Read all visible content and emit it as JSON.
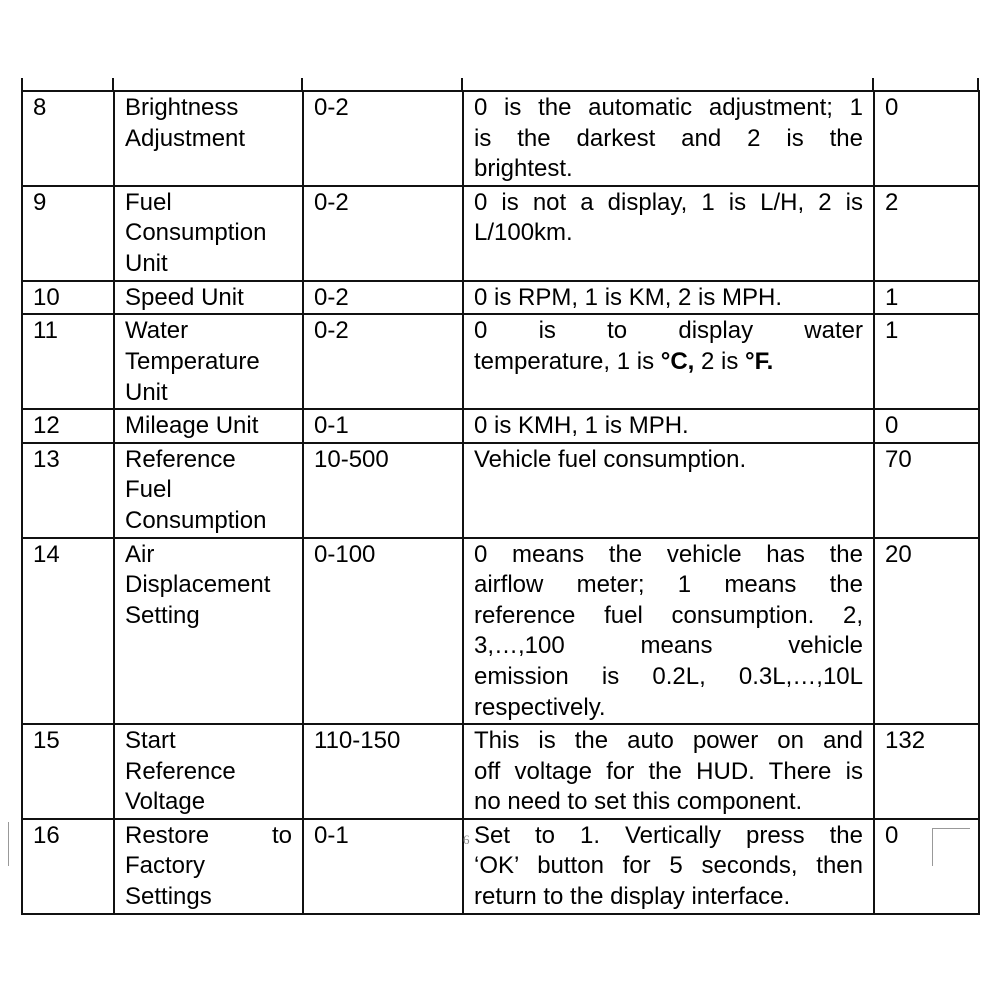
{
  "page_number": "6",
  "rows": [
    {
      "no": "8",
      "name": [
        "Brightness",
        "Adjustment"
      ],
      "range": "0-2",
      "desc": [
        [
          {
            "t": "0 is the automatic adjustment; 1"
          }
        ],
        [
          {
            "t": "is the darkest and 2 is the"
          }
        ],
        [
          {
            "t": "brightest."
          }
        ]
      ],
      "default": "0"
    },
    {
      "no": "9",
      "name": [
        "Fuel",
        "Consumption",
        "Unit"
      ],
      "range": "0-2",
      "desc": [
        [
          {
            "t": "0 is not a display, 1 is L/H, 2 is"
          }
        ],
        [
          {
            "t": "L/100km."
          }
        ]
      ],
      "default": "2"
    },
    {
      "no": "10",
      "name": [
        "Speed Unit"
      ],
      "range": "0-2",
      "desc": [
        [
          {
            "t": "0 is RPM, 1 is KM, 2 is MPH."
          }
        ]
      ],
      "default": "1"
    },
    {
      "no": "11",
      "name": [
        "Water",
        "Temperature",
        "Unit"
      ],
      "range": "0-2",
      "desc": [
        [
          {
            "t": "0 is to display water"
          }
        ],
        [
          {
            "t": "temperature, 1 is "
          },
          {
            "t": "°C,",
            "b": true
          },
          {
            "t": " 2 is "
          },
          {
            "t": "°F.",
            "b": true
          }
        ]
      ],
      "default": "1"
    },
    {
      "no": "12",
      "name": [
        "Mileage Unit"
      ],
      "range": "0-1",
      "desc": [
        [
          {
            "t": "0 is KMH, 1 is MPH."
          }
        ]
      ],
      "default": "0"
    },
    {
      "no": "13",
      "name": [
        "Reference",
        "Fuel",
        "Consumption"
      ],
      "range": "10-500",
      "desc": [
        [
          {
            "t": "Vehicle fuel consumption."
          }
        ]
      ],
      "default": "70"
    },
    {
      "no": "14",
      "name": [
        "Air",
        "Displacement",
        "Setting"
      ],
      "range": "0-100",
      "desc": [
        [
          {
            "t": "0 means the vehicle has the"
          }
        ],
        [
          {
            "t": "airflow meter; 1 means the"
          }
        ],
        [
          {
            "t": "reference fuel consumption. 2,"
          }
        ],
        [
          {
            "t": "3,…,100 means vehicle"
          }
        ],
        [
          {
            "t": "emission is 0.2L, 0.3L,…,10L"
          }
        ],
        [
          {
            "t": "respectively."
          }
        ]
      ],
      "default": "20"
    },
    {
      "no": "15",
      "name": [
        "Start",
        "Reference",
        "Voltage"
      ],
      "range": "110-150",
      "desc": [
        [
          {
            "t": "This is the auto power on and"
          }
        ],
        [
          {
            "t": "off voltage for the HUD. There is"
          }
        ],
        [
          {
            "t": "no need to set this component."
          }
        ]
      ],
      "default": "132"
    },
    {
      "no": "16",
      "name": [
        "Restore to",
        "Factory",
        "Settings"
      ],
      "range": "0-1",
      "desc": [
        [
          {
            "t": "Set to 1. Vertically press the"
          }
        ],
        [
          {
            "t": "‘OK’ button for 5 seconds, then"
          }
        ],
        [
          {
            "t": "return to the display interface."
          }
        ]
      ],
      "default": "0"
    }
  ]
}
